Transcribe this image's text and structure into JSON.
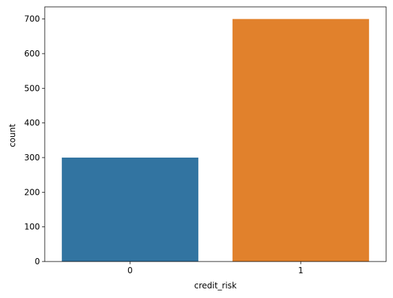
{
  "chart_data": {
    "type": "bar",
    "categories": [
      "0",
      "1"
    ],
    "values": [
      300,
      700
    ],
    "colors": [
      "#3274a1",
      "#e1812c"
    ],
    "xlabel": "credit_risk",
    "ylabel": "count",
    "ylim": [
      0,
      735
    ],
    "yticks": [
      0,
      100,
      200,
      300,
      400,
      500,
      600,
      700
    ],
    "grid": false,
    "legend": "none"
  }
}
